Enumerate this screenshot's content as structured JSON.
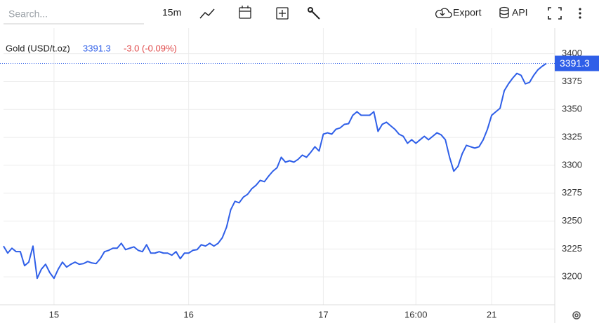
{
  "toolbar": {
    "search_placeholder": "Search...",
    "interval": "15m",
    "export": "Export",
    "api": "API"
  },
  "chart_data": {
    "type": "line",
    "grid": true,
    "x": [
      0,
      1,
      2,
      3,
      4,
      5,
      6,
      7,
      8,
      9,
      10,
      11,
      12,
      13,
      14,
      15,
      16,
      17,
      18,
      19,
      20,
      21,
      22,
      23,
      24,
      25,
      26,
      27,
      28,
      29,
      30,
      31,
      32,
      33,
      34,
      35,
      36,
      37,
      38,
      39,
      40,
      41,
      42,
      43,
      44,
      45,
      46,
      47,
      48,
      49,
      50,
      51,
      52,
      53,
      54,
      55,
      56,
      57,
      58,
      59,
      60,
      61,
      62,
      63,
      64,
      65,
      66,
      67,
      68,
      69,
      70,
      71,
      72,
      73,
      74,
      75,
      76,
      77,
      78,
      79,
      80,
      81,
      82,
      83,
      84,
      85,
      86,
      87,
      88,
      89,
      90,
      91,
      92,
      93,
      94,
      95,
      96,
      97,
      98,
      99,
      100,
      101,
      102,
      103,
      104,
      105,
      106,
      107,
      108,
      109,
      110,
      111,
      112,
      113,
      114,
      115,
      116,
      117,
      118,
      119,
      120,
      121,
      122,
      123,
      124,
      125,
      126,
      127,
      128,
      129
    ],
    "series": [
      {
        "name": "Gold (USD/t.oz)",
        "color": "#2f5fe8",
        "change_label": "-3.0 (-0.09%)",
        "values": [
          3227.6,
          3221.3,
          3225.7,
          3222.6,
          3222.6,
          3210.0,
          3213.2,
          3227.6,
          3198.7,
          3206.9,
          3211.3,
          3203.8,
          3198.7,
          3206.9,
          3213.2,
          3208.8,
          3211.3,
          3213.2,
          3211.3,
          3211.9,
          3213.8,
          3212.5,
          3211.9,
          3216.3,
          3222.6,
          3223.8,
          3225.7,
          3225.7,
          3230.1,
          3224.4,
          3225.7,
          3226.9,
          3223.8,
          3222.6,
          3228.8,
          3221.3,
          3221.3,
          3222.6,
          3221.3,
          3221.3,
          3219.4,
          3222.6,
          3216.3,
          3221.3,
          3221.3,
          3223.8,
          3224.4,
          3228.8,
          3227.6,
          3230.1,
          3227.6,
          3230.1,
          3235.1,
          3244.5,
          3260.2,
          3267.7,
          3266.4,
          3271.5,
          3274.0,
          3279.0,
          3282.1,
          3286.5,
          3285.3,
          3290.3,
          3294.7,
          3297.8,
          3307.2,
          3302.8,
          3304.1,
          3302.8,
          3305.3,
          3309.1,
          3307.2,
          3311.6,
          3316.6,
          3312.8,
          3327.9,
          3329.1,
          3327.9,
          3332.3,
          3333.5,
          3336.7,
          3337.3,
          3344.8,
          3348.0,
          3344.8,
          3344.8,
          3344.8,
          3348.0,
          3330.4,
          3336.7,
          3338.6,
          3335.4,
          3332.3,
          3327.9,
          3326.0,
          3319.7,
          3322.9,
          3319.7,
          3322.9,
          3326.0,
          3322.9,
          3326.0,
          3329.1,
          3327.3,
          3322.9,
          3307.2,
          3294.7,
          3299.0,
          3310.3,
          3317.9,
          3316.6,
          3315.4,
          3316.6,
          3322.9,
          3332.3,
          3344.8,
          3348.0,
          3351.1,
          3366.8,
          3373.0,
          3378.1,
          3382.4,
          3380.6,
          3373.0,
          3374.3,
          3380.6,
          3385.6,
          3388.7,
          3391.3
        ]
      }
    ],
    "xlim": [
      0,
      131
    ],
    "xticks": [
      {
        "value": 12,
        "label": "15"
      },
      {
        "value": 44,
        "label": "16"
      },
      {
        "value": 76,
        "label": "17"
      },
      {
        "value": 98,
        "label": "16:00"
      },
      {
        "value": 116,
        "label": "21"
      }
    ],
    "ylim": [
      3175,
      3423
    ],
    "yticks": [
      3200,
      3225,
      3250,
      3275,
      3300,
      3325,
      3350,
      3375,
      3400
    ]
  }
}
